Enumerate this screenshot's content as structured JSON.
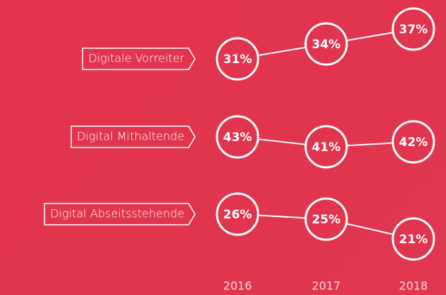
{
  "chart_data": {
    "type": "line",
    "categories": [
      "2016",
      "2017",
      "2018"
    ],
    "series": [
      {
        "name": "Digitale Vorreiter",
        "color": "#ffffff",
        "values": [
          31,
          34,
          37
        ],
        "value_labels": [
          "31%",
          "34%",
          "37%"
        ]
      },
      {
        "name": "Digital Mithaltende",
        "color": "#ffffff",
        "values": [
          43,
          41,
          42
        ],
        "value_labels": [
          "43%",
          "41%",
          "42%"
        ]
      },
      {
        "name": "Digital Abseitsstehende",
        "color": "#ffffff",
        "values": [
          26,
          25,
          21
        ],
        "value_labels": [
          "26%",
          "25%",
          "21%"
        ]
      }
    ]
  }
}
